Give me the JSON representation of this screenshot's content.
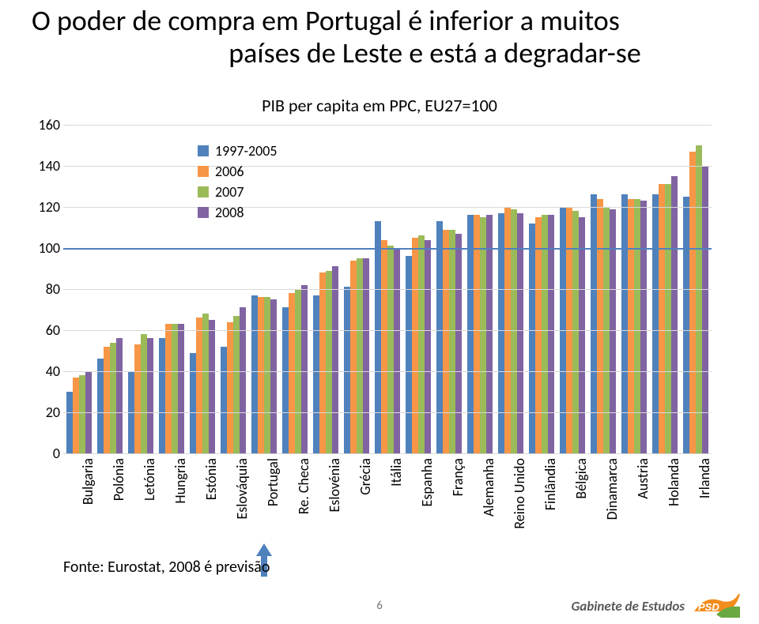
{
  "title_line1": "O poder de compra em Portugal é inferior a muitos",
  "title_line2": "países de Leste e está a degradar-se",
  "chart": {
    "type": "bar",
    "title": "PIB per capita em PPC, EU27=100",
    "title_fontsize": 22,
    "label_fontsize": 18,
    "background_color": "#ffffff",
    "grid_color": "#d9d9d9",
    "ymin": 0,
    "ymax": 160,
    "ytick_step": 20,
    "eu_baseline": 100,
    "eu_line_color": "#4f81bd",
    "series": [
      {
        "key": "s1",
        "label": "1997-2005",
        "color": "#4f81bd"
      },
      {
        "key": "s2",
        "label": "2006",
        "color": "#f79646"
      },
      {
        "key": "s3",
        "label": "2007",
        "color": "#9bbb59"
      },
      {
        "key": "s4",
        "label": "2008",
        "color": "#8064a2"
      }
    ],
    "legend_position": "upper-left-inside",
    "highlight_index": 6,
    "arrow_color": "#4f81bd",
    "categories": [
      {
        "label": "Bulgaria",
        "s1": 30,
        "s2": 37,
        "s3": 38,
        "s4": 40
      },
      {
        "label": "Polónia",
        "s1": 46,
        "s2": 52,
        "s3": 54,
        "s4": 56
      },
      {
        "label": "Letónia",
        "s1": 40,
        "s2": 53,
        "s3": 58,
        "s4": 56
      },
      {
        "label": "Hungria",
        "s1": 56,
        "s2": 63,
        "s3": 63,
        "s4": 63
      },
      {
        "label": "Estónia",
        "s1": 49,
        "s2": 66,
        "s3": 68,
        "s4": 65
      },
      {
        "label": "Eslováquia",
        "s1": 52,
        "s2": 64,
        "s3": 67,
        "s4": 71
      },
      {
        "label": "Portugal",
        "s1": 77,
        "s2": 76,
        "s3": 76,
        "s4": 75
      },
      {
        "label": "Re. Checa",
        "s1": 71,
        "s2": 78,
        "s3": 80,
        "s4": 82
      },
      {
        "label": "Eslovénia",
        "s1": 77,
        "s2": 88,
        "s3": 89,
        "s4": 91
      },
      {
        "label": "Grécia",
        "s1": 81,
        "s2": 94,
        "s3": 95,
        "s4": 95
      },
      {
        "label": "Itália",
        "s1": 113,
        "s2": 104,
        "s3": 101,
        "s4": 100
      },
      {
        "label": "Espanha",
        "s1": 96,
        "s2": 105,
        "s3": 106,
        "s4": 104
      },
      {
        "label": "França",
        "s1": 113,
        "s2": 109,
        "s3": 109,
        "s4": 107
      },
      {
        "label": "Alemanha",
        "s1": 116,
        "s2": 116,
        "s3": 115,
        "s4": 116
      },
      {
        "label": "Reino Unido",
        "s1": 117,
        "s2": 120,
        "s3": 119,
        "s4": 117
      },
      {
        "label": "Finlândia",
        "s1": 112,
        "s2": 115,
        "s3": 116,
        "s4": 116
      },
      {
        "label": "Bélgica",
        "s1": 120,
        "s2": 120,
        "s3": 118,
        "s4": 115
      },
      {
        "label": "Dinamarca",
        "s1": 126,
        "s2": 124,
        "s3": 120,
        "s4": 119
      },
      {
        "label": "Austria",
        "s1": 126,
        "s2": 124,
        "s3": 124,
        "s4": 123
      },
      {
        "label": "Holanda",
        "s1": 126,
        "s2": 131,
        "s3": 131,
        "s4": 135
      },
      {
        "label": "Irlanda",
        "s1": 125,
        "s2": 147,
        "s3": 150,
        "s4": 140
      }
    ]
  },
  "footnote": "Fonte: Eurostat, 2008 é previsão",
  "page_number": "6",
  "footer_label": "Gabinete de Estudos",
  "logo": {
    "text": "PSD",
    "bg_main": "#f28c1d",
    "bg_accent": "#6aa842",
    "text_color": "#ffffff"
  }
}
